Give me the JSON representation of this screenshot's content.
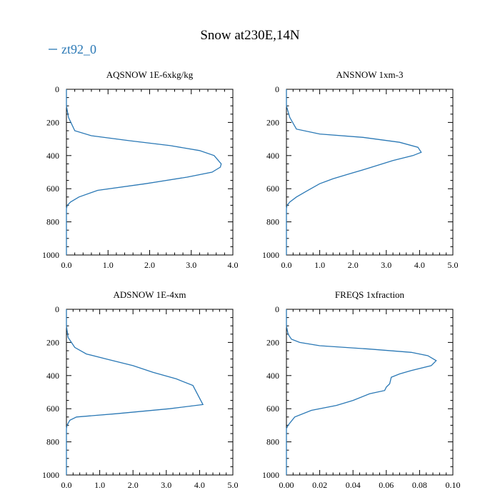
{
  "figure": {
    "title": "Snow at230E,14N",
    "legend_label": "zt92_0",
    "legend_color": "#2a78b5"
  },
  "chart_data": [
    {
      "type": "line",
      "title": "AQSNOW  1E-6xkg/kg",
      "xlim": [
        0,
        4.0
      ],
      "ylim": [
        1000,
        0
      ],
      "xticks": [
        0,
        1,
        2,
        3,
        4
      ],
      "xtick_labels": [
        "0.0",
        "1.0",
        "2.0",
        "3.0",
        "4.0"
      ],
      "yticks": [
        0,
        200,
        400,
        600,
        800,
        1000
      ],
      "ytick_labels": [
        "0",
        "200",
        "400",
        "600",
        "800",
        "1000"
      ],
      "series": [
        {
          "name": "zt92_0",
          "color": "#2a78b5",
          "x": [
            0,
            0,
            0.05,
            0.2,
            0.6,
            1.5,
            2.5,
            3.2,
            3.55,
            3.72,
            3.7,
            3.5,
            2.9,
            1.9,
            0.75,
            0.3,
            0.1,
            0.02,
            0,
            0,
            0
          ],
          "y": [
            0,
            100,
            170,
            250,
            280,
            310,
            340,
            370,
            400,
            450,
            470,
            500,
            530,
            570,
            610,
            650,
            680,
            700,
            720,
            850,
            1000
          ]
        }
      ]
    },
    {
      "type": "line",
      "title": "ANSNOW  1xm-3",
      "xlim": [
        0,
        5.0
      ],
      "ylim": [
        1000,
        0
      ],
      "xticks": [
        0,
        1,
        2,
        3,
        4,
        5
      ],
      "xtick_labels": [
        "0.0",
        "1.0",
        "2.0",
        "3.0",
        "4.0",
        "5.0"
      ],
      "yticks": [
        0,
        200,
        400,
        600,
        800,
        1000
      ],
      "ytick_labels": [
        "0",
        "200",
        "400",
        "600",
        "800",
        "1000"
      ],
      "series": [
        {
          "name": "zt92_0",
          "color": "#2a78b5",
          "x": [
            0,
            0,
            0.1,
            0.3,
            1.0,
            2.3,
            3.4,
            3.95,
            4.05,
            3.8,
            3.2,
            2.4,
            1.9,
            1.4,
            1.0,
            0.6,
            0.3,
            0.1,
            0.02,
            0,
            0,
            0
          ],
          "y": [
            0,
            100,
            170,
            240,
            270,
            290,
            320,
            350,
            380,
            400,
            430,
            480,
            510,
            540,
            570,
            615,
            650,
            680,
            700,
            720,
            850,
            1000
          ]
        }
      ]
    },
    {
      "type": "line",
      "title": "ADSNOW  1E-4xm",
      "xlim": [
        0,
        5.0
      ],
      "ylim": [
        1000,
        0
      ],
      "xticks": [
        0,
        1,
        2,
        3,
        4,
        5
      ],
      "xtick_labels": [
        "0.0",
        "1.0",
        "2.0",
        "3.0",
        "4.0",
        "5.0"
      ],
      "yticks": [
        0,
        200,
        400,
        600,
        800,
        1000
      ],
      "ytick_labels": [
        "0",
        "200",
        "400",
        "600",
        "800",
        "1000"
      ],
      "series": [
        {
          "name": "zt92_0",
          "color": "#2a78b5",
          "x": [
            0,
            0,
            0.05,
            0.25,
            0.6,
            1.2,
            2.0,
            2.6,
            3.3,
            3.8,
            4.1,
            3.1,
            1.5,
            0.3,
            0.1,
            0.02,
            0,
            0,
            0
          ],
          "y": [
            0,
            100,
            170,
            230,
            270,
            300,
            340,
            380,
            420,
            460,
            575,
            600,
            630,
            650,
            670,
            700,
            720,
            850,
            1000
          ]
        }
      ]
    },
    {
      "type": "line",
      "title": "FREQS  1xfraction",
      "xlim": [
        0,
        0.1
      ],
      "ylim": [
        1000,
        0
      ],
      "xticks": [
        0,
        0.02,
        0.04,
        0.06,
        0.08,
        0.1
      ],
      "xtick_labels": [
        "0.00",
        "0.02",
        "0.04",
        "0.06",
        "0.08",
        "0.10"
      ],
      "yticks": [
        0,
        200,
        400,
        600,
        800,
        1000
      ],
      "ytick_labels": [
        "0",
        "200",
        "400",
        "600",
        "800",
        "1000"
      ],
      "series": [
        {
          "name": "zt92_0",
          "color": "#2a78b5",
          "x": [
            0,
            0,
            0.001,
            0.003,
            0.008,
            0.02,
            0.05,
            0.075,
            0.085,
            0.09,
            0.087,
            0.075,
            0.068,
            0.063,
            0.062,
            0.06,
            0.059,
            0.05,
            0.04,
            0.03,
            0.015,
            0.005,
            0.001,
            0,
            0,
            0
          ],
          "y": [
            0,
            100,
            150,
            180,
            200,
            220,
            240,
            260,
            280,
            310,
            340,
            370,
            390,
            410,
            450,
            470,
            490,
            510,
            550,
            580,
            610,
            650,
            700,
            720,
            850,
            1000
          ]
        }
      ]
    }
  ]
}
